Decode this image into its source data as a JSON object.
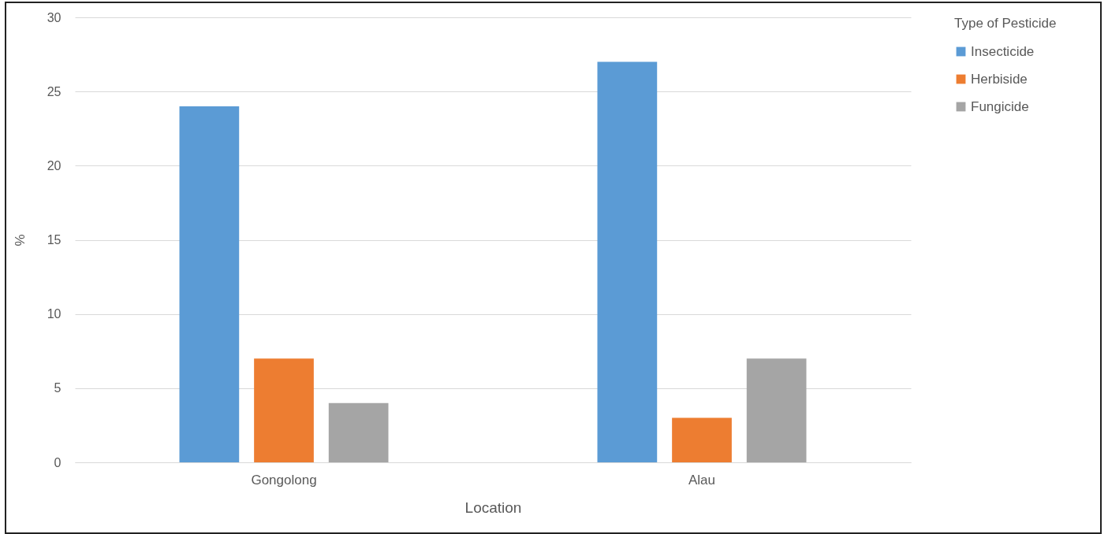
{
  "chart_data": {
    "type": "bar",
    "xlabel": "Location",
    "ylabel": "%",
    "legend_title": "Type of Pesticide",
    "categories": [
      "Gongolong",
      "Alau"
    ],
    "series": [
      {
        "name": "Insecticide",
        "color": "#5b9bd5",
        "values": [
          24,
          27
        ]
      },
      {
        "name": "Herbiside",
        "color": "#ed7d31",
        "values": [
          7,
          3
        ]
      },
      {
        "name": "Fungicide",
        "color": "#a5a5a5",
        "values": [
          4,
          7
        ]
      }
    ],
    "ylim": [
      0,
      30
    ],
    "yticks": [
      0,
      5,
      10,
      15,
      20,
      25,
      30
    ],
    "grid": "y",
    "legend": "right"
  }
}
